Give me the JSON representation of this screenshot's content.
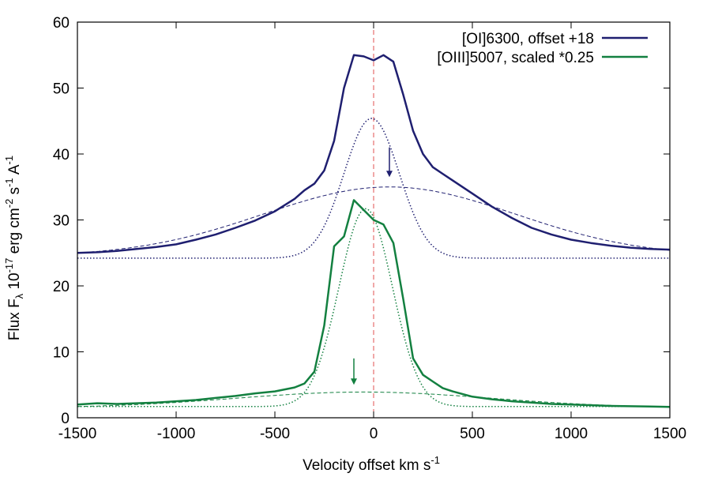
{
  "chart_data": {
    "type": "line",
    "xlabel": "Velocity offset km s",
    "xlabel_sup": "-1",
    "ylabel_parts": [
      "Flux F",
      "λ",
      " 10",
      "-17",
      " erg cm",
      "-2",
      " s",
      "-1",
      " A",
      "-1"
    ],
    "xlim": [
      -1500,
      1500
    ],
    "ylim": [
      0,
      60
    ],
    "xticks": [
      -1500,
      -1000,
      -500,
      0,
      500,
      1000,
      1500
    ],
    "yticks": [
      0,
      10,
      20,
      30,
      40,
      50,
      60
    ],
    "grid": false,
    "legend_position": "top-right",
    "vline": {
      "x": 0,
      "color": "#e05050",
      "style": "dashed"
    },
    "colors": {
      "oi": "#1f1f70",
      "oiii": "#138040"
    },
    "series": [
      {
        "name": "[OI]6300, offset +18",
        "color": "#1f1f70",
        "style": "solid",
        "legend": true,
        "x": [
          -1500,
          -1400,
          -1300,
          -1200,
          -1100,
          -1000,
          -900,
          -800,
          -700,
          -600,
          -500,
          -400,
          -350,
          -300,
          -250,
          -200,
          -150,
          -100,
          -50,
          0,
          50,
          100,
          150,
          200,
          250,
          300,
          350,
          400,
          500,
          600,
          700,
          800,
          900,
          1000,
          1100,
          1200,
          1300,
          1400,
          1500
        ],
        "y": [
          25,
          25.1,
          25.3,
          25.6,
          25.9,
          26.3,
          27,
          27.8,
          28.8,
          29.9,
          31.3,
          33.2,
          34.5,
          35.5,
          37.5,
          42,
          50,
          55,
          54.8,
          54.2,
          55,
          54,
          49,
          43.5,
          40,
          38,
          37,
          36,
          34,
          32,
          30.3,
          28.8,
          27.8,
          27,
          26.5,
          26.1,
          25.8,
          25.6,
          25.5
        ]
      },
      {
        "name": "[OIII]5007, scaled *0.25",
        "color": "#138040",
        "style": "solid",
        "legend": true,
        "x": [
          -1500,
          -1400,
          -1300,
          -1200,
          -1100,
          -1000,
          -900,
          -800,
          -700,
          -600,
          -500,
          -400,
          -350,
          -300,
          -250,
          -200,
          -150,
          -100,
          0,
          50,
          100,
          150,
          200,
          250,
          300,
          350,
          400,
          500,
          600,
          700,
          800,
          900,
          1000,
          1100,
          1200,
          1300,
          1400,
          1500
        ],
        "y": [
          2,
          2.2,
          2.1,
          2.2,
          2.3,
          2.5,
          2.7,
          3,
          3.3,
          3.7,
          4,
          4.6,
          5.2,
          7,
          14,
          26,
          27.5,
          33,
          30,
          29.3,
          26.5,
          18,
          9,
          6.5,
          5.5,
          4.5,
          4,
          3.2,
          2.8,
          2.5,
          2.3,
          2.1,
          2,
          1.9,
          1.8,
          1.75,
          1.7,
          1.65
        ]
      },
      {
        "name": "",
        "color": "#1f1f70",
        "style": "dashed",
        "legend": false,
        "fn": "gauss",
        "params": {
          "base": 24.5,
          "amp": 10.5,
          "mu": 80,
          "sigma": 640
        }
      },
      {
        "name": "",
        "color": "#1f1f70",
        "style": "dotted",
        "legend": false,
        "fn": "gauss",
        "params": {
          "base": 24.2,
          "amp": 21.2,
          "mu": -10,
          "sigma": 140
        }
      },
      {
        "name": "",
        "color": "#138040",
        "style": "dashed",
        "legend": false,
        "fn": "gauss",
        "params": {
          "base": 1.5,
          "amp": 2.4,
          "mu": -50,
          "sigma": 650
        }
      },
      {
        "name": "",
        "color": "#138040",
        "style": "dotted",
        "legend": false,
        "fn": "gauss",
        "params": {
          "base": 1.7,
          "amp": 30,
          "mu": -40,
          "sigma": 135
        }
      }
    ],
    "annotations": [
      {
        "type": "arrow-down",
        "x": 80,
        "y_tip": 36.5,
        "y_tail": 41,
        "color": "#1f1f70"
      },
      {
        "type": "arrow-down",
        "x": -100,
        "y_tip": 5,
        "y_tail": 9,
        "color": "#138040"
      }
    ]
  }
}
